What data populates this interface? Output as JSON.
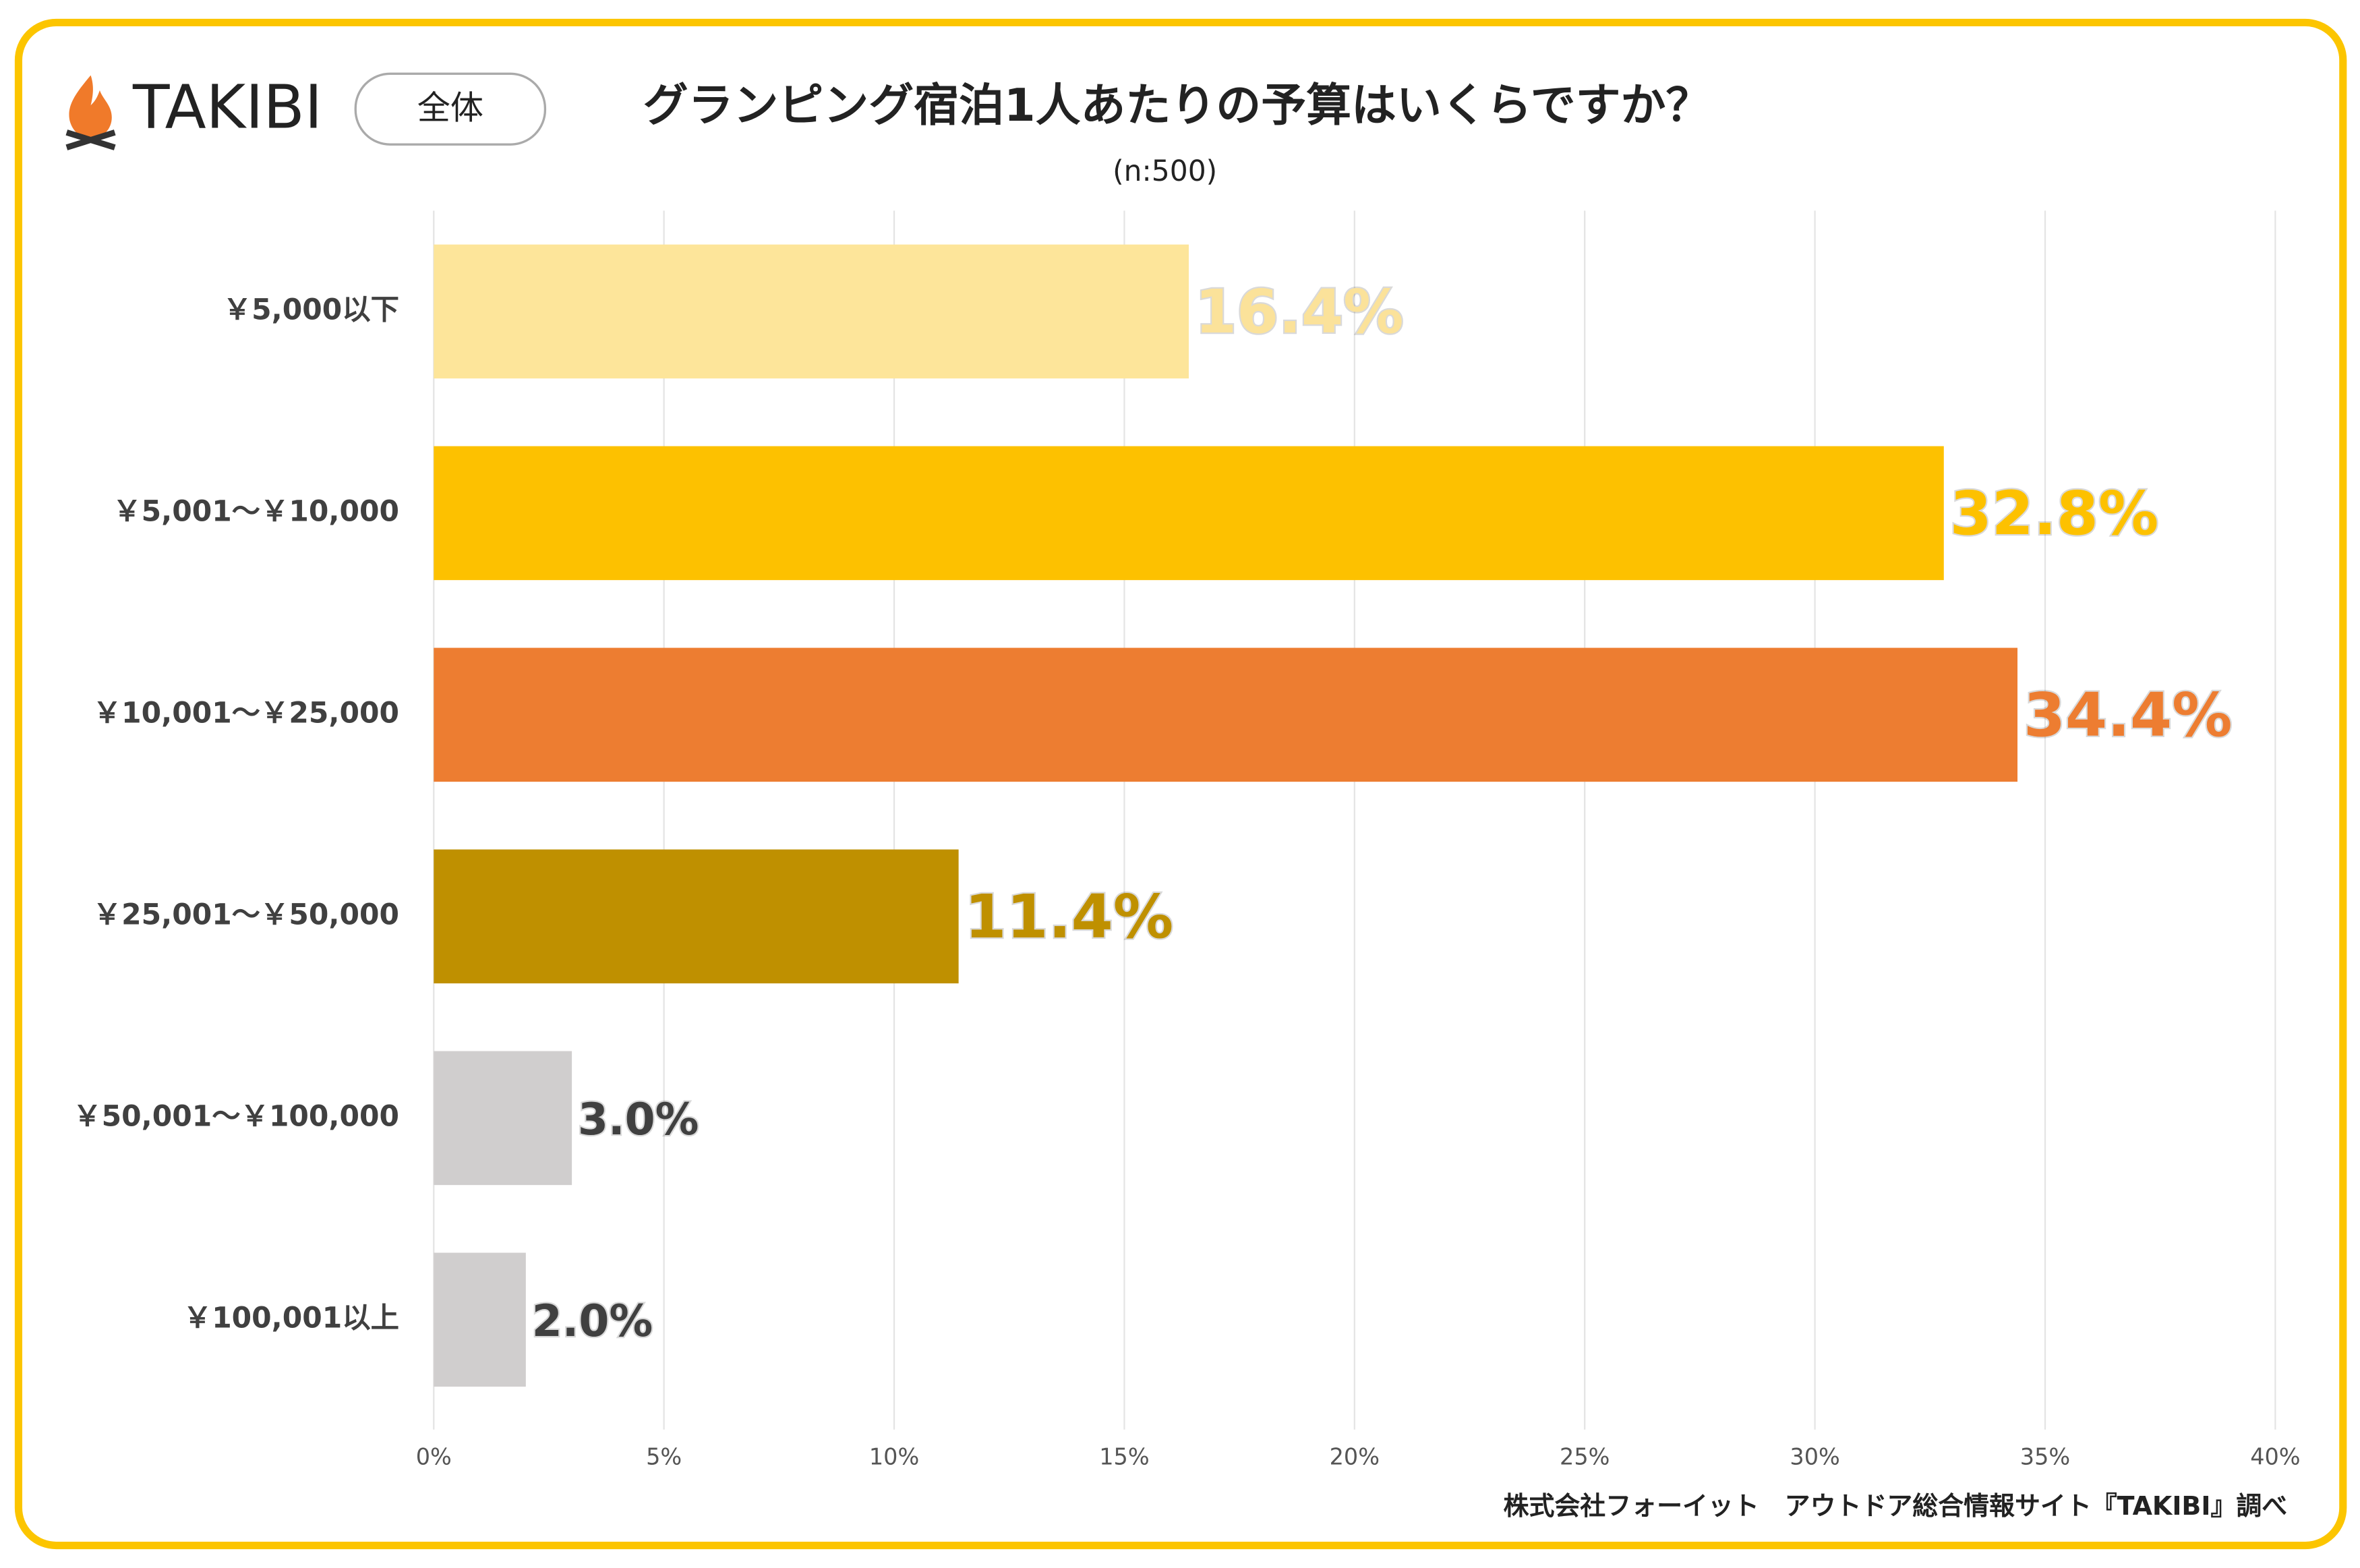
{
  "brand": "TAKIBI",
  "badge": "全体",
  "chart_data": {
    "type": "hbar",
    "title": "グランピング宿泊1人あたりの予算はいくらですか？",
    "subtitle": "(n:500)",
    "source": "株式会社フォーイット　アウトドア総合情報サイト『TAKIBI』調べ",
    "categories": [
      "￥5,000以下",
      "￥5,001〜￥10,000",
      "￥10,001〜￥25,000",
      "￥25,001〜￥50,000",
      "￥50,001〜￥100,000",
      "￥100,001以上"
    ],
    "values": [
      16.4,
      32.8,
      34.4,
      11.4,
      3.0,
      2.0
    ],
    "value_labels": [
      "16.4%",
      "32.8%",
      "34.4%",
      "11.4%",
      "3.0%",
      "2.0%"
    ],
    "colors": [
      "#fde59a",
      "#fdc100",
      "#ed7d31",
      "#bf9000",
      "#d0cece",
      "#d0cece"
    ],
    "label_colors": [
      "#fbe29a",
      "#fdc100",
      "#ed7d31",
      "#bf9000",
      "#404040",
      "#404040"
    ],
    "xlim": [
      0,
      40
    ],
    "xticks": [
      {
        "value": 0,
        "label": "0%"
      },
      {
        "value": 5,
        "label": "5%"
      },
      {
        "value": 10,
        "label": "10%"
      },
      {
        "value": 15,
        "label": "15%"
      },
      {
        "value": 20,
        "label": "20%"
      },
      {
        "value": 25,
        "label": "25%"
      },
      {
        "value": 30,
        "label": "30%"
      },
      {
        "value": 35,
        "label": "35%"
      },
      {
        "value": 40,
        "label": "40%"
      }
    ],
    "grid": true
  }
}
